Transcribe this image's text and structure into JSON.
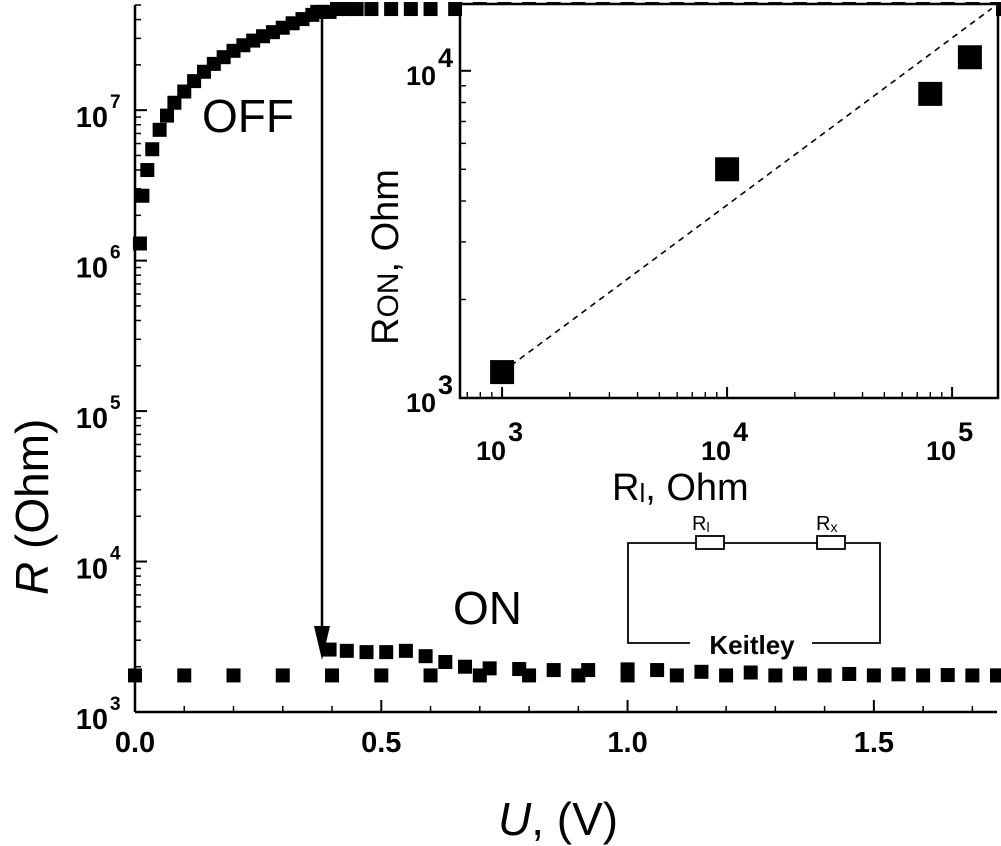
{
  "chart_data": [
    {
      "type": "scatter",
      "yscale": "log",
      "xlabel_var": "U",
      "xlabel_rest": ", (V)",
      "ylabel_var": "R",
      "ylabel_rest": " (Ohm)",
      "xlim": [
        0.0,
        1.75
      ],
      "ylim": [
        1000,
        50000000
      ],
      "x_ticks": [
        {
          "value": 0.0,
          "label": "0.0"
        },
        {
          "value": 0.5,
          "label": "0.5"
        },
        {
          "value": 1.0,
          "label": "1.0"
        },
        {
          "value": 1.5,
          "label": "1.5"
        }
      ],
      "y_ticks": [
        {
          "value": 1000,
          "base": "10",
          "exp": "3"
        },
        {
          "value": 10000,
          "base": "10",
          "exp": "4"
        },
        {
          "value": 100000,
          "base": "10",
          "exp": "5"
        },
        {
          "value": 1000000,
          "base": "10",
          "exp": "6"
        },
        {
          "value": 10000000,
          "base": "10",
          "exp": "7"
        }
      ],
      "annotations": {
        "off": "OFF",
        "on": "ON"
      },
      "switch": {
        "from": [
          0.37,
          45000000
        ],
        "to": [
          0.37,
          2600
        ]
      },
      "series": [
        {
          "points": [
            [
              0.01,
              1300000
            ],
            [
              0.015,
              2700000
            ],
            [
              0.025,
              4000000
            ],
            [
              0.035,
              5500000
            ],
            [
              0.05,
              7400000
            ],
            [
              0.065,
              9200000
            ],
            [
              0.08,
              11200000
            ],
            [
              0.1,
              13300000
            ],
            [
              0.12,
              15600000
            ],
            [
              0.14,
              18000000
            ],
            [
              0.16,
              20300000
            ],
            [
              0.18,
              22500000
            ],
            [
              0.2,
              24800000
            ],
            [
              0.22,
              27000000
            ],
            [
              0.24,
              29000000
            ],
            [
              0.26,
              31000000
            ],
            [
              0.28,
              33000000
            ],
            [
              0.3,
              35300000
            ],
            [
              0.32,
              37800000
            ],
            [
              0.34,
              40300000
            ],
            [
              0.36,
              43000000
            ],
            [
              0.37,
              45000000
            ],
            [
              0.38,
              45000000
            ],
            [
              0.395,
              45000000
            ],
            [
              0.41,
              47000000
            ],
            [
              0.43,
              47000000
            ],
            [
              0.45,
              47000000
            ],
            [
              0.48,
              47000000
            ],
            [
              0.52,
              47000000
            ],
            [
              0.56,
              47000000
            ],
            [
              0.6,
              47000000
            ],
            [
              0.65,
              47000000
            ],
            [
              0.7,
              47000000
            ],
            [
              0.75,
              47000000
            ],
            [
              0.8,
              47000000
            ],
            [
              0.85,
              47000000
            ],
            [
              0.9,
              47000000
            ],
            [
              0.95,
              47000000
            ],
            [
              1.0,
              47000000
            ],
            [
              1.05,
              47000000
            ],
            [
              1.1,
              47000000
            ],
            [
              1.15,
              47000000
            ],
            [
              1.2,
              47000000
            ],
            [
              1.25,
              47000000
            ],
            [
              1.3,
              47000000
            ],
            [
              1.35,
              47000000
            ],
            [
              1.4,
              47000000
            ],
            [
              1.45,
              47000000
            ],
            [
              1.5,
              47000000
            ],
            [
              1.55,
              47000000
            ],
            [
              1.6,
              47000000
            ],
            [
              1.65,
              47000000
            ],
            [
              1.7,
              47000000
            ],
            [
              1.75,
              47000000
            ]
          ]
        },
        {
          "points": [
            [
              0.395,
              2600
            ],
            [
              0.43,
              2550
            ],
            [
              0.47,
              2500
            ],
            [
              0.51,
              2500
            ],
            [
              0.55,
              2550
            ],
            [
              0.59,
              2350
            ],
            [
              0.63,
              2150
            ],
            [
              0.67,
              2000
            ],
            [
              0.72,
              1950
            ],
            [
              0.78,
              1930
            ],
            [
              0.85,
              1900
            ],
            [
              0.92,
              1900
            ],
            [
              1.0,
              1920
            ],
            [
              1.06,
              1900
            ],
            [
              1.15,
              1850
            ],
            [
              1.25,
              1830
            ],
            [
              1.35,
              1800
            ],
            [
              1.45,
              1790
            ],
            [
              1.55,
              1780
            ],
            [
              1.65,
              1760
            ],
            [
              1.75,
              1750
            ]
          ]
        },
        {
          "points": [
            [
              0.0,
              1750
            ],
            [
              0.1,
              1750
            ],
            [
              0.2,
              1750
            ],
            [
              0.3,
              1750
            ],
            [
              0.4,
              1750
            ],
            [
              0.5,
              1750
            ],
            [
              0.6,
              1750
            ],
            [
              0.7,
              1750
            ],
            [
              0.8,
              1750
            ],
            [
              0.9,
              1750
            ],
            [
              1.0,
              1750
            ],
            [
              1.1,
              1750
            ],
            [
              1.2,
              1750
            ],
            [
              1.3,
              1750
            ],
            [
              1.4,
              1750
            ],
            [
              1.5,
              1750
            ],
            [
              1.6,
              1750
            ],
            [
              1.7,
              1750
            ],
            [
              1.75,
              1750
            ]
          ]
        }
      ]
    },
    {
      "type": "scatter",
      "xscale": "log",
      "yscale": "log",
      "xlabel_main": "R",
      "xlabel_sub": "l",
      "xlabel_rest": ", Ohm",
      "ylabel_main": "R",
      "ylabel_sub": "ON",
      "ylabel_rest": ", Ohm",
      "xlim": [
        650,
        160000
      ],
      "ylim": [
        1000,
        16000
      ],
      "x_ticks": [
        {
          "value": 1000,
          "base": "10",
          "exp": "3"
        },
        {
          "value": 10000,
          "base": "10",
          "exp": "4"
        },
        {
          "value": 100000,
          "base": "10",
          "exp": "5"
        }
      ],
      "y_ticks": [
        {
          "value": 1000,
          "base": "10",
          "exp": "3"
        },
        {
          "value": 10000,
          "base": "10",
          "exp": "4"
        }
      ],
      "series": [
        {
          "points": [
            [
              1000,
              1200
            ],
            [
              10000,
              5000
            ],
            [
              80000,
              8500
            ],
            [
              120000,
              11000
            ]
          ]
        }
      ],
      "fit_line": {
        "style": "dashed",
        "points": [
          [
            1000,
            1200
          ],
          [
            150000,
            15500
          ]
        ]
      }
    }
  ],
  "circuit": {
    "resistor_left": "R",
    "resistor_left_sub": "l",
    "resistor_right": "R",
    "resistor_right_sub": "x",
    "meter": "Keitley"
  }
}
